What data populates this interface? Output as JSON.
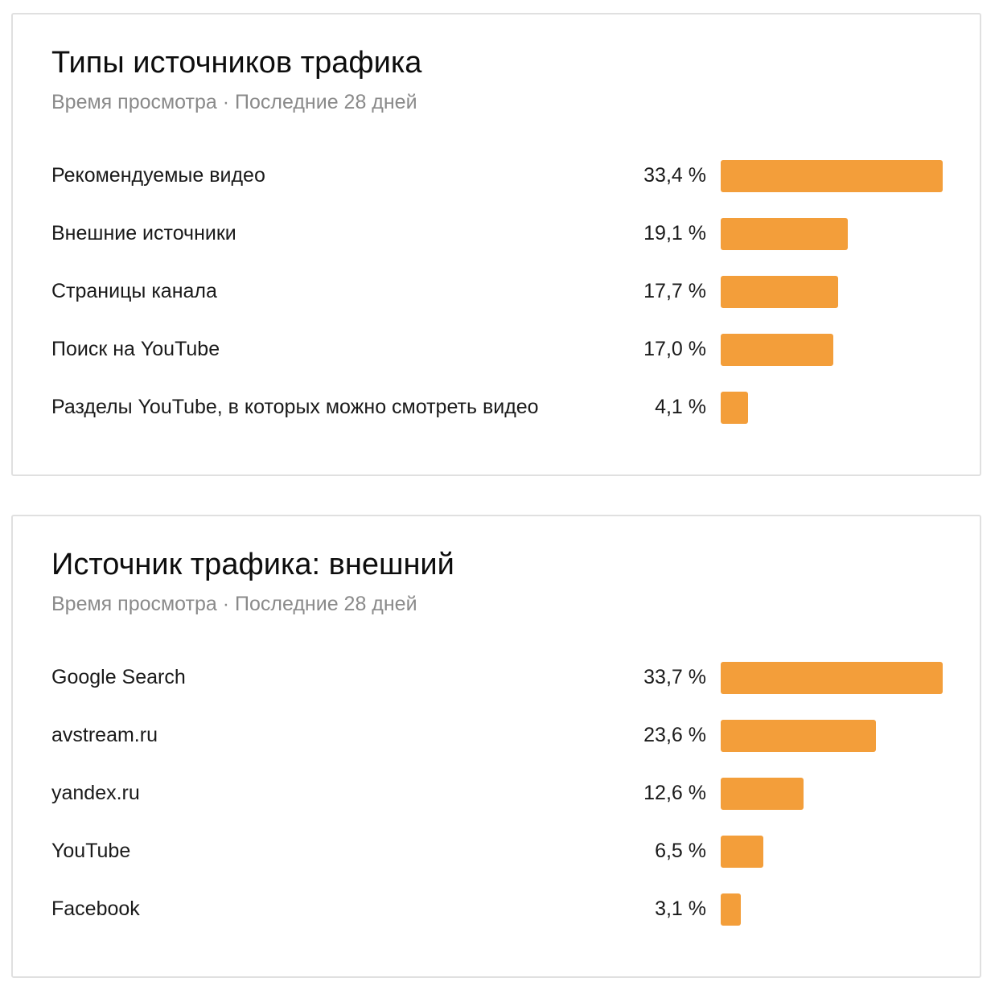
{
  "bar_color": "#f39e3a",
  "cards": [
    {
      "title": "Типы источников трафика",
      "subtitle": "Время просмотра · Последние 28 дней",
      "rows": [
        {
          "label": "Рекомендуемые видео",
          "value_text": "33,4 %",
          "value": 33.4
        },
        {
          "label": "Внешние источники",
          "value_text": "19,1 %",
          "value": 19.1
        },
        {
          "label": "Страницы канала",
          "value_text": "17,7 %",
          "value": 17.7
        },
        {
          "label": "Поиск на YouTube",
          "value_text": "17,0 %",
          "value": 17.0
        },
        {
          "label": "Разделы YouTube, в которых можно смотреть видео",
          "value_text": "4,1 %",
          "value": 4.1
        }
      ]
    },
    {
      "title": "Источник трафика: внешний",
      "subtitle": "Время просмотра · Последние 28 дней",
      "rows": [
        {
          "label": "Google Search",
          "value_text": "33,7 %",
          "value": 33.7
        },
        {
          "label": "avstream.ru",
          "value_text": "23,6 %",
          "value": 23.6
        },
        {
          "label": "yandex.ru",
          "value_text": "12,6 %",
          "value": 12.6
        },
        {
          "label": "YouTube",
          "value_text": "6,5 %",
          "value": 6.5
        },
        {
          "label": "Facebook",
          "value_text": "3,1 %",
          "value": 3.1
        }
      ]
    }
  ]
}
